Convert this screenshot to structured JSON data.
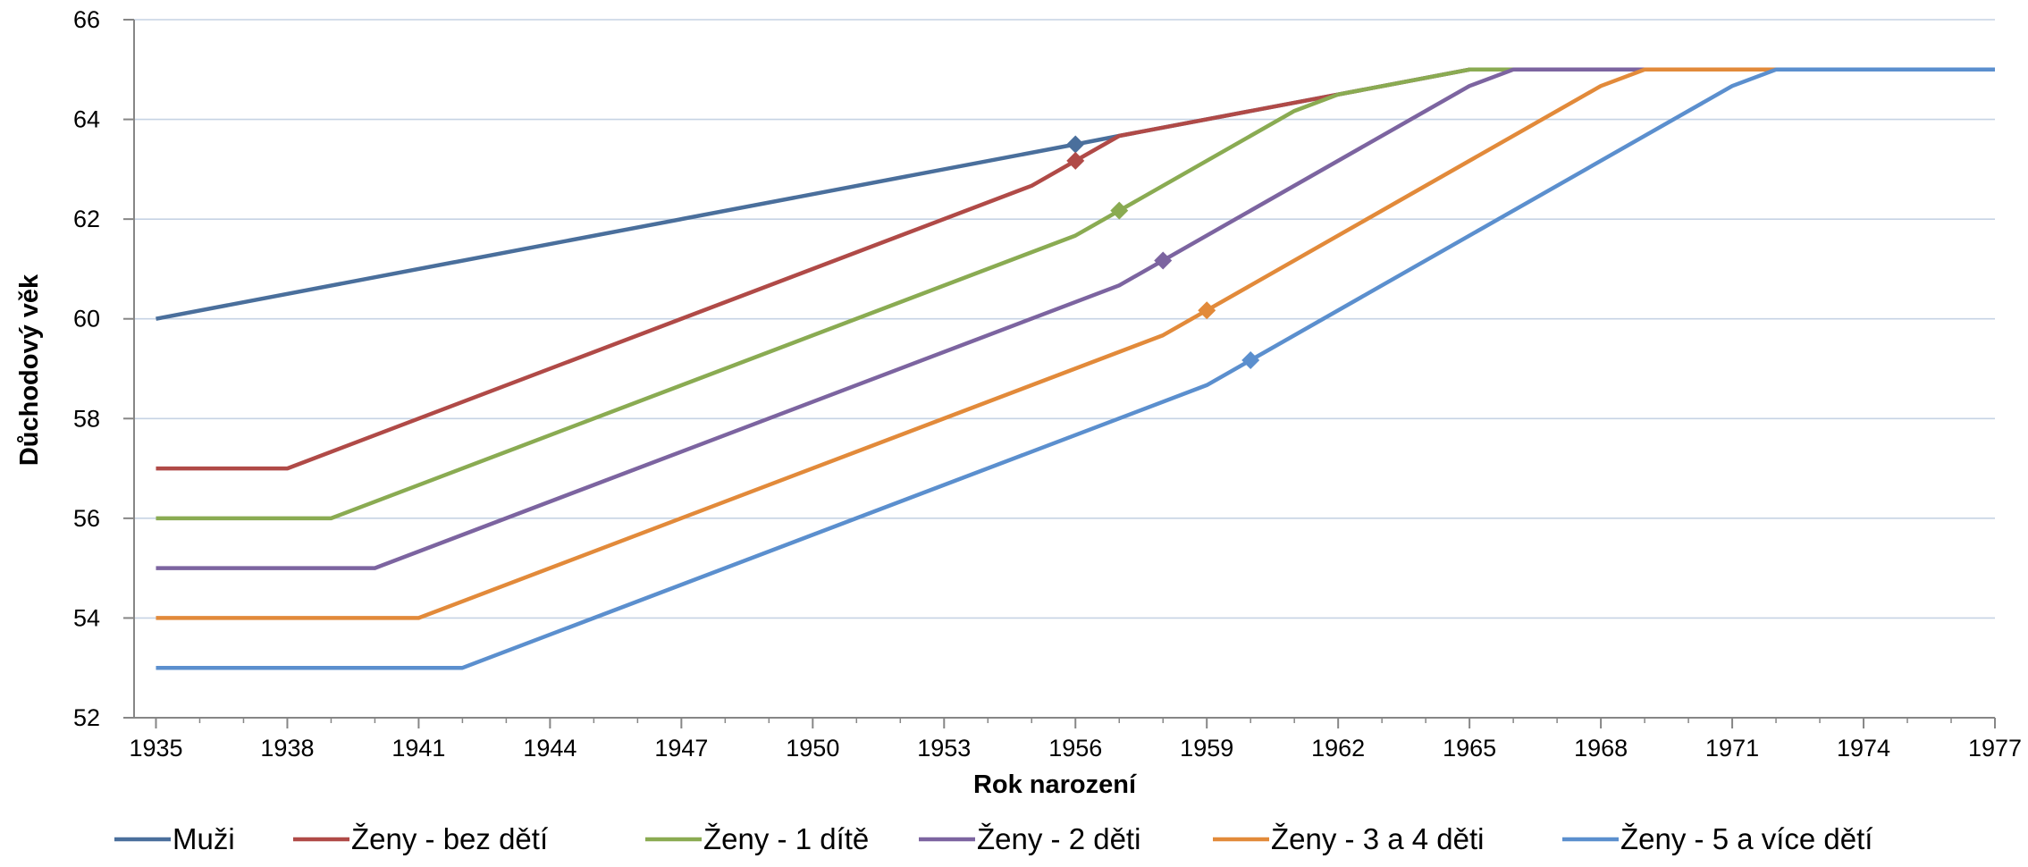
{
  "chart_data": {
    "type": "line",
    "title": "",
    "xlabel": "Rok narození",
    "ylabel": "Důchodový věk",
    "xlim": [
      1934.5,
      1977
    ],
    "ylim": [
      52,
      66
    ],
    "x_ticks": [
      1935,
      1938,
      1941,
      1944,
      1947,
      1950,
      1953,
      1956,
      1959,
      1962,
      1965,
      1968,
      1971,
      1974,
      1977
    ],
    "y_ticks": [
      52,
      54,
      56,
      58,
      60,
      62,
      64,
      66
    ],
    "grid": "horizontal",
    "legend_position": "bottom",
    "series": [
      {
        "name": "Muži",
        "color": "#4a6f9c",
        "points": [
          [
            1935,
            60
          ],
          [
            1956,
            63.5
          ],
          [
            1957,
            63.67
          ],
          [
            1962,
            64.5
          ],
          [
            1965,
            65
          ],
          [
            1977,
            65
          ]
        ],
        "marker": [
          1956,
          63.5
        ]
      },
      {
        "name": "Ženy - bez dětí",
        "color": "#b04a47",
        "points": [
          [
            1935,
            57
          ],
          [
            1938,
            57
          ],
          [
            1955,
            62.67
          ],
          [
            1957,
            63.67
          ],
          [
            1962,
            64.5
          ],
          [
            1965,
            65
          ],
          [
            1977,
            65
          ]
        ],
        "marker": [
          1956,
          63.17
        ]
      },
      {
        "name": "Ženy - 1 dítě",
        "color": "#8aab52",
        "points": [
          [
            1935,
            56
          ],
          [
            1939,
            56
          ],
          [
            1956,
            61.67
          ],
          [
            1957,
            62.17
          ],
          [
            1961,
            64.17
          ],
          [
            1962,
            64.5
          ],
          [
            1965,
            65
          ],
          [
            1977,
            65
          ]
        ],
        "marker": [
          1957,
          62.17
        ]
      },
      {
        "name": "Ženy - 2 děti",
        "color": "#7c64a0",
        "points": [
          [
            1935,
            55
          ],
          [
            1940,
            55
          ],
          [
            1957,
            60.67
          ],
          [
            1958,
            61.17
          ],
          [
            1965,
            64.67
          ],
          [
            1966,
            65
          ],
          [
            1977,
            65
          ]
        ],
        "marker": [
          1958,
          61.17
        ]
      },
      {
        "name": "Ženy - 3 a 4 děti",
        "color": "#e28a3a",
        "points": [
          [
            1935,
            54
          ],
          [
            1941,
            54
          ],
          [
            1958,
            59.67
          ],
          [
            1959,
            60.17
          ],
          [
            1968,
            64.67
          ],
          [
            1969,
            65
          ],
          [
            1977,
            65
          ]
        ],
        "marker": [
          1959,
          60.17
        ]
      },
      {
        "name": "Ženy - 5 a více dětí",
        "color": "#5b8fce",
        "points": [
          [
            1935,
            53
          ],
          [
            1942,
            53
          ],
          [
            1959,
            58.67
          ],
          [
            1960,
            59.17
          ],
          [
            1971,
            64.67
          ],
          [
            1972,
            65
          ],
          [
            1977,
            65
          ]
        ],
        "marker": [
          1960,
          59.17
        ]
      }
    ]
  }
}
